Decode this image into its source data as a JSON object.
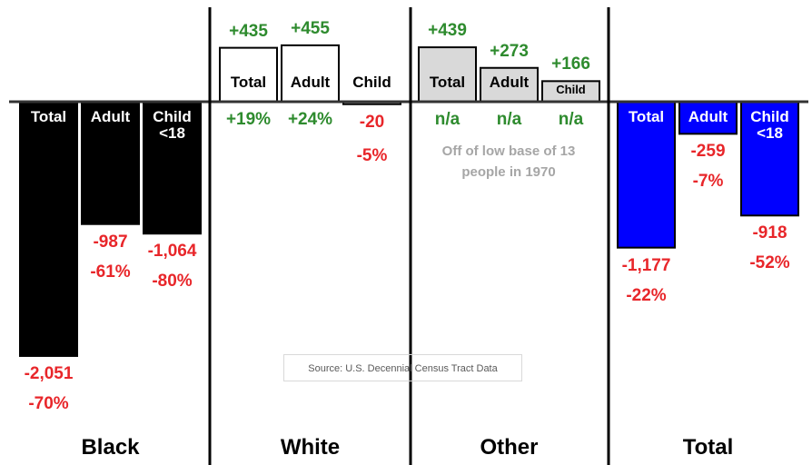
{
  "chart_data": {
    "type": "bar",
    "groups": [
      {
        "name": "Black",
        "color": "#000000",
        "text_color": "#ffffff",
        "bars": [
          {
            "label": "Total",
            "value": -2051,
            "value_label": "-2,051",
            "change_label": "-70%"
          },
          {
            "label": "Adult",
            "value": -987,
            "value_label": "-987",
            "change_label": "-61%"
          },
          {
            "label": "Child <18",
            "value": -1064,
            "value_label": "-1,064",
            "change_label": "-80%"
          }
        ]
      },
      {
        "name": "White",
        "color": "#ffffff",
        "text_color": "#000000",
        "bars": [
          {
            "label": "Total",
            "value": 435,
            "value_label": "+435",
            "change_label": "+19%"
          },
          {
            "label": "Adult",
            "value": 455,
            "value_label": "+455",
            "change_label": "+24%"
          },
          {
            "label": "Child",
            "value": -20,
            "value_label": "-20",
            "change_label": "-5%"
          }
        ]
      },
      {
        "name": "Other",
        "color": "#d9d9d9",
        "text_color": "#000000",
        "bars": [
          {
            "label": "Total",
            "value": 439,
            "value_label": "+439",
            "change_label": "n/a"
          },
          {
            "label": "Adult",
            "value": 273,
            "value_label": "+273",
            "change_label": "n/a"
          },
          {
            "label": "Child",
            "value": 166,
            "value_label": "+166",
            "change_label": "n/a"
          }
        ]
      },
      {
        "name": "Total",
        "color": "#0000ff",
        "text_color": "#ffffff",
        "bars": [
          {
            "label": "Total",
            "value": -1177,
            "value_label": "-1,177",
            "change_label": "-22%"
          },
          {
            "label": "Adult",
            "value": -259,
            "value_label": "-259",
            "change_label": "-7%"
          },
          {
            "label": "Child <18",
            "value": -918,
            "value_label": "-918",
            "change_label": "-52%"
          }
        ]
      }
    ],
    "note": "Off of low base of 13 people in 1970",
    "source": "Source: U.S. Decennial Census Tract Data"
  }
}
